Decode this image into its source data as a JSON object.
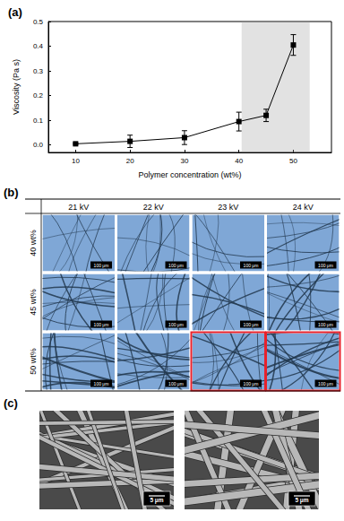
{
  "chart_data": {
    "type": "line",
    "panel_label": "(a)",
    "x": [
      10,
      20,
      30,
      40,
      45,
      50
    ],
    "values": [
      0.005,
      0.015,
      0.03,
      0.095,
      0.12,
      0.405
    ],
    "error": [
      0.003,
      0.025,
      0.028,
      0.038,
      0.025,
      0.042
    ],
    "color": "#000000",
    "marker": "square",
    "xlabel": "Polymer concentration (wt%)",
    "ylabel": "Viscosity (Pa s)",
    "xlim": [
      5,
      57
    ],
    "xticks": [
      10,
      20,
      30,
      40,
      50
    ],
    "ylim": [
      -0.03,
      0.5
    ],
    "yticks": [
      {
        "value": 0,
        "label": "0.0"
      },
      {
        "value": 0.1,
        "label": "0.1"
      },
      {
        "value": 0.2,
        "label": "0.2"
      },
      {
        "value": 0.3,
        "label": "0.3"
      },
      {
        "value": 0.4,
        "label": "0.4"
      },
      {
        "value": 0.5,
        "label": "0.5"
      }
    ],
    "shaded_x": [
      40.5,
      53
    ],
    "grid": false
  },
  "panel_b": {
    "panel_label": "(b)",
    "columns": [
      "21 kV",
      "22 kV",
      "23 kV",
      "24 kV"
    ],
    "rows": [
      "40 wt%",
      "45 wt%",
      "50 wt%"
    ],
    "scale_bar": "100 μm",
    "highlighted": [
      [
        2,
        2
      ],
      [
        2,
        3
      ]
    ],
    "highlight_color": "#e8212b"
  },
  "panel_c": {
    "panel_label": "(c)",
    "images": 2,
    "scale_bar": "5 μm"
  }
}
